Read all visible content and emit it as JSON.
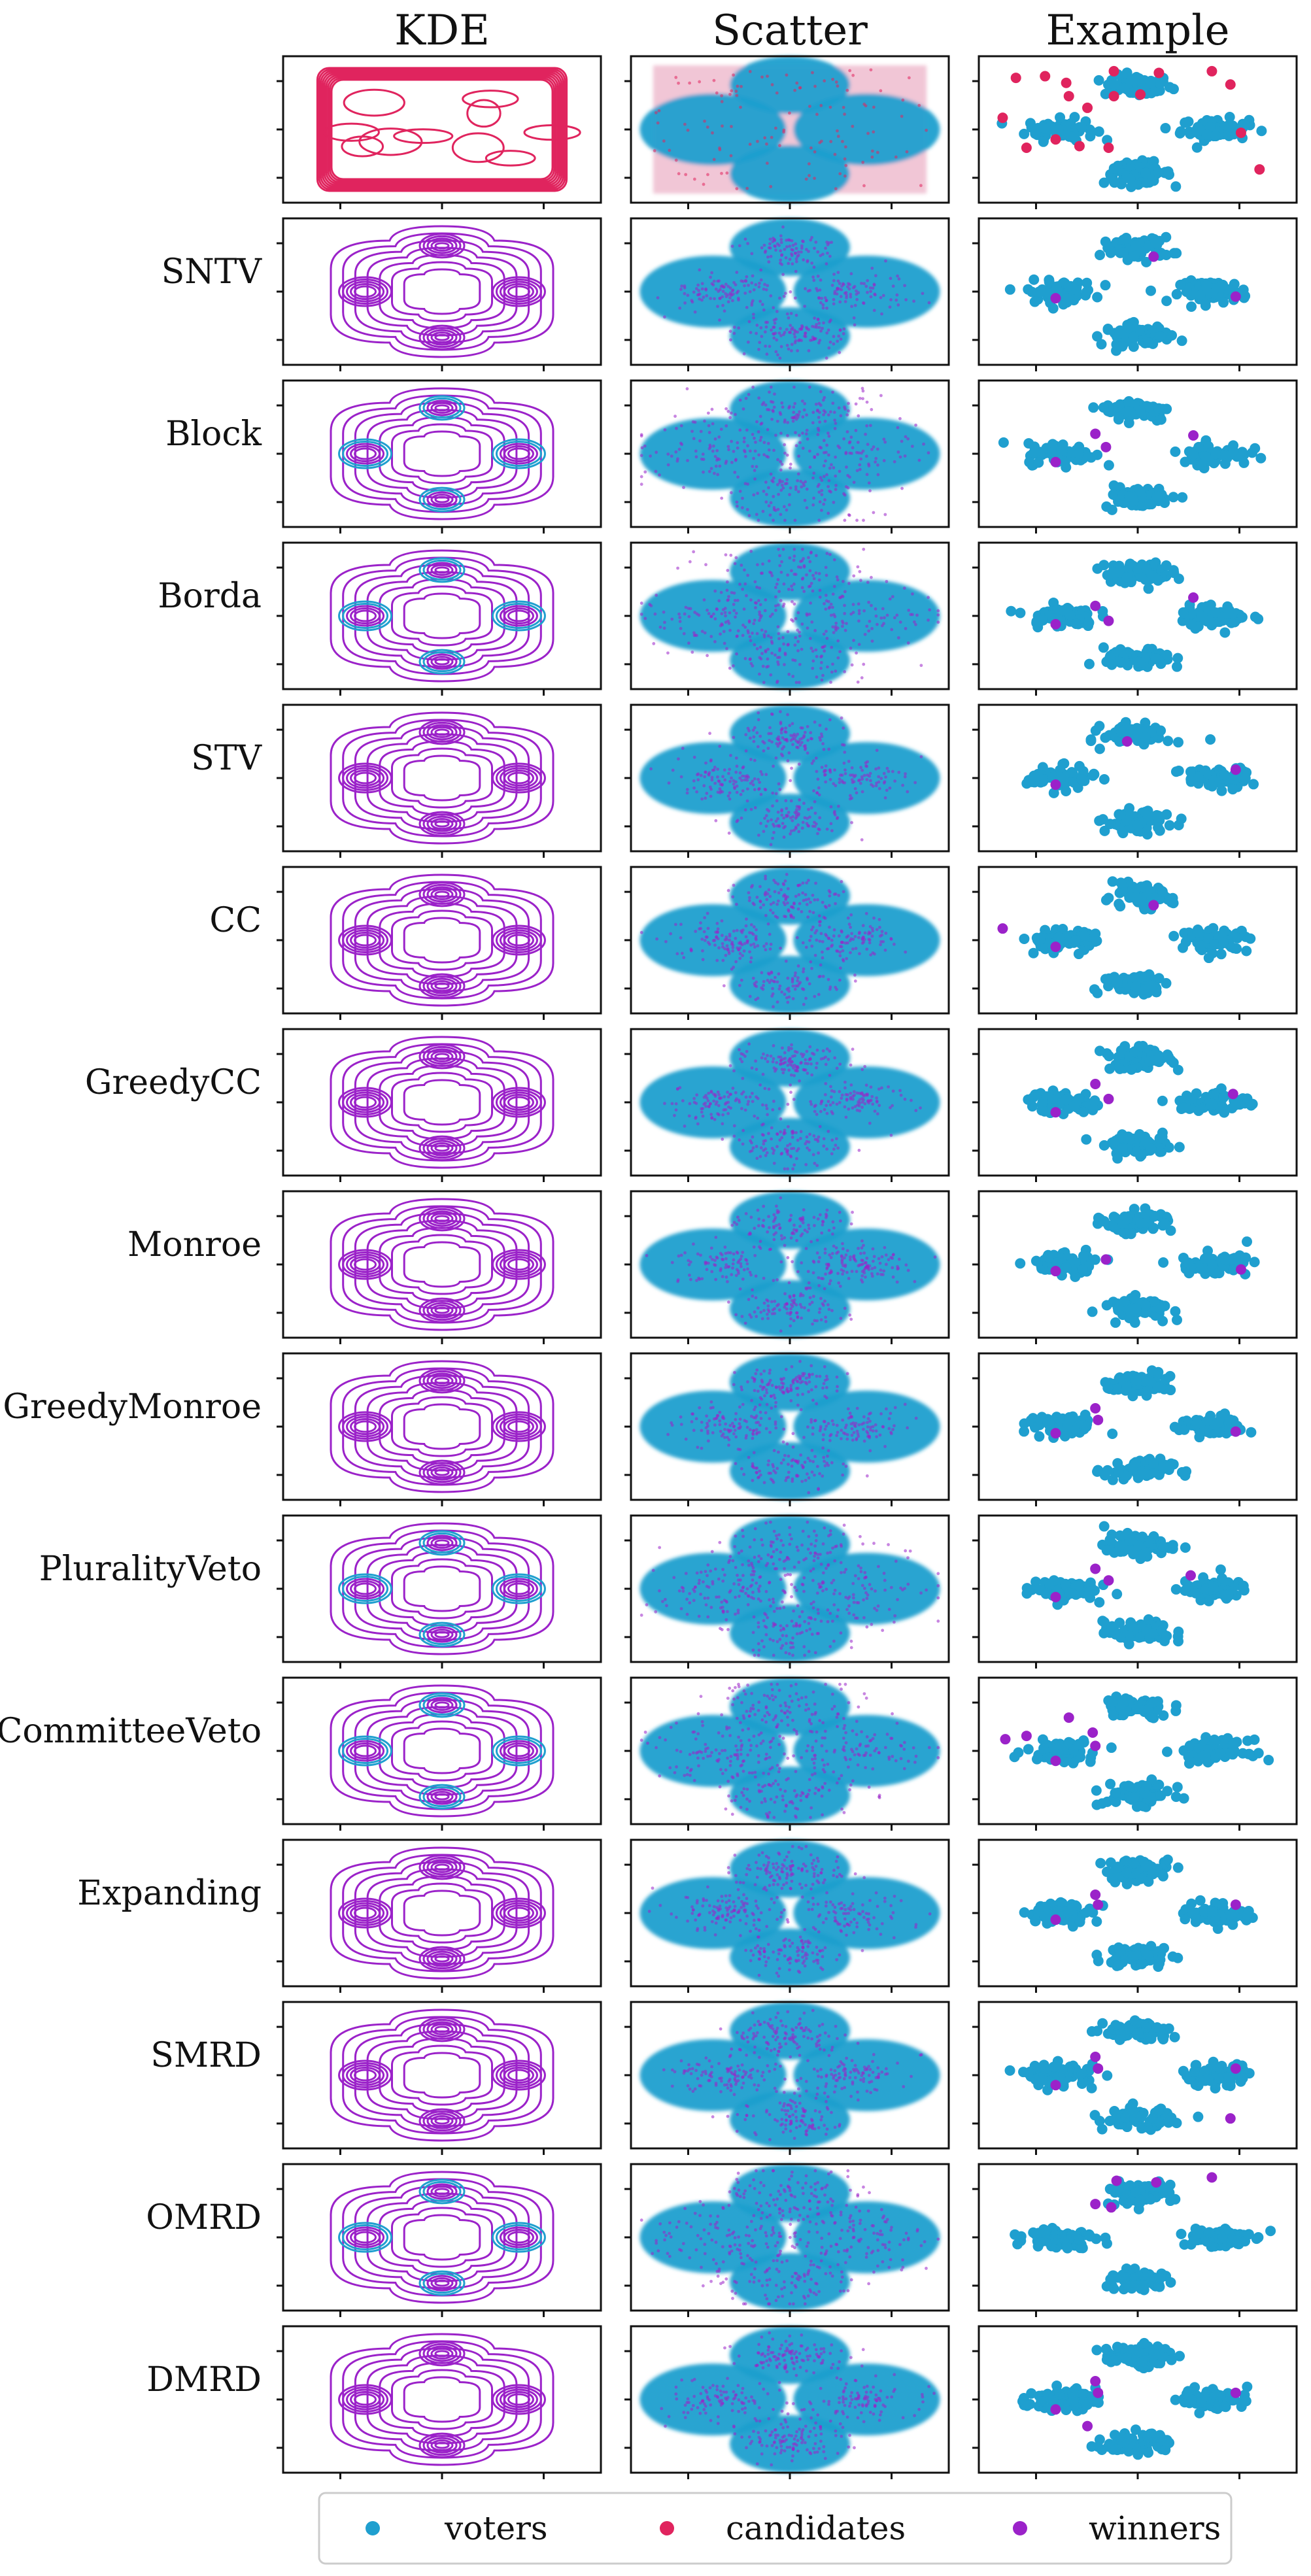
{
  "colors": {
    "voters": "#1f9fcf",
    "candidates": "#e0245e",
    "winners": "#9b22c9"
  },
  "chart_data": {
    "type": "scatter",
    "title": "",
    "column_titles": [
      "KDE",
      "Scatter",
      "Example"
    ],
    "row_labels": [
      "",
      "SNTV",
      "Block",
      "Borda",
      "STV",
      "CC",
      "GreedyCC",
      "Monroe",
      "GreedyMonroe",
      "PluralityVeto",
      "CommitteeVeto",
      "Expanding",
      "SMRD",
      "OMRD",
      "DMRD"
    ],
    "legend": {
      "placement": "bottom-center",
      "entries": [
        {
          "label": "voters",
          "color": "#1f9fcf"
        },
        {
          "label": "candidates",
          "color": "#e0245e"
        },
        {
          "label": "winners",
          "color": "#9b22c9"
        }
      ]
    },
    "voter_clusters": [
      {
        "x": 0,
        "y": 1.45
      },
      {
        "x": -1.45,
        "y": 0
      },
      {
        "x": 1.45,
        "y": 0
      },
      {
        "x": 0,
        "y": -1.45
      }
    ],
    "example_candidates": [
      {
        "x": -2.3,
        "y": 1.55
      },
      {
        "x": -1.75,
        "y": 1.6
      },
      {
        "x": -1.35,
        "y": 1.4
      },
      {
        "x": -0.45,
        "y": 1.75
      },
      {
        "x": 0.4,
        "y": 1.7
      },
      {
        "x": 1.4,
        "y": 1.75
      },
      {
        "x": 1.75,
        "y": 1.35
      },
      {
        "x": -2.55,
        "y": 0.35
      },
      {
        "x": -1.55,
        "y": -0.3
      },
      {
        "x": -0.55,
        "y": -0.55
      },
      {
        "x": -1.1,
        "y": -0.5
      },
      {
        "x": -2.1,
        "y": -0.55
      },
      {
        "x": 1.95,
        "y": -0.1
      },
      {
        "x": 2.3,
        "y": -1.2
      },
      {
        "x": -0.95,
        "y": 0.65
      },
      {
        "x": -1.3,
        "y": 1.0
      },
      {
        "x": -0.45,
        "y": 1.0
      },
      {
        "x": 0.05,
        "y": 1.05
      }
    ],
    "example_winners": [
      [],
      [
        {
          "x": 0.3,
          "y": 1.05
        },
        {
          "x": -1.55,
          "y": -0.2
        },
        {
          "x": 1.85,
          "y": -0.15
        }
      ],
      [
        {
          "x": -0.8,
          "y": 0.6
        },
        {
          "x": -0.6,
          "y": 0.2
        },
        {
          "x": 1.05,
          "y": 0.55
        },
        {
          "x": -1.55,
          "y": -0.25
        }
      ],
      [
        {
          "x": -0.8,
          "y": 0.3
        },
        {
          "x": -0.55,
          "y": -0.15
        },
        {
          "x": 1.05,
          "y": 0.55
        },
        {
          "x": -1.55,
          "y": -0.25
        }
      ],
      [
        {
          "x": -0.2,
          "y": 1.1
        },
        {
          "x": 1.85,
          "y": 0.25
        },
        {
          "x": -1.55,
          "y": -0.2
        }
      ],
      [
        {
          "x": -2.55,
          "y": 0.35
        },
        {
          "x": 0.3,
          "y": 1.05
        },
        {
          "x": -1.55,
          "y": -0.2
        }
      ],
      [
        {
          "x": -0.8,
          "y": 0.55
        },
        {
          "x": -0.55,
          "y": 0.1
        },
        {
          "x": 1.8,
          "y": 0.25
        },
        {
          "x": -1.55,
          "y": -0.3
        }
      ],
      [
        {
          "x": -0.6,
          "y": 0.15
        },
        {
          "x": 1.95,
          "y": -0.15
        },
        {
          "x": -1.55,
          "y": -0.2
        }
      ],
      [
        {
          "x": -0.8,
          "y": 0.55
        },
        {
          "x": -0.75,
          "y": 0.2
        },
        {
          "x": 1.85,
          "y": -0.15
        },
        {
          "x": -1.55,
          "y": -0.2
        }
      ],
      [
        {
          "x": -0.8,
          "y": 0.6
        },
        {
          "x": -0.55,
          "y": 0.25
        },
        {
          "x": 1.0,
          "y": 0.4
        },
        {
          "x": -1.55,
          "y": -0.25
        }
      ],
      [
        {
          "x": -2.5,
          "y": 0.35
        },
        {
          "x": -2.1,
          "y": 0.45
        },
        {
          "x": -0.85,
          "y": 0.55
        },
        {
          "x": -0.8,
          "y": 0.15
        },
        {
          "x": -1.3,
          "y": 1.0
        },
        {
          "x": -1.55,
          "y": -0.3
        }
      ],
      [
        {
          "x": -0.8,
          "y": 0.55
        },
        {
          "x": -0.75,
          "y": 0.25
        },
        {
          "x": 1.85,
          "y": 0.25
        },
        {
          "x": -1.55,
          "y": -0.2
        }
      ],
      [
        {
          "x": -0.8,
          "y": 0.55
        },
        {
          "x": -0.75,
          "y": 0.2
        },
        {
          "x": 1.85,
          "y": 0.2
        },
        {
          "x": -1.55,
          "y": -0.3
        },
        {
          "x": 1.75,
          "y": -1.3
        }
      ],
      [
        {
          "x": -0.4,
          "y": 1.7
        },
        {
          "x": 0.35,
          "y": 1.65
        },
        {
          "x": 1.4,
          "y": 1.8
        },
        {
          "x": -0.8,
          "y": 1.0
        },
        {
          "x": -0.5,
          "y": 0.9
        }
      ],
      [
        {
          "x": -0.8,
          "y": 0.55
        },
        {
          "x": -0.75,
          "y": 0.2
        },
        {
          "x": 1.85,
          "y": 0.2
        },
        {
          "x": -1.55,
          "y": -0.3
        },
        {
          "x": -0.95,
          "y": -0.8
        }
      ]
    ]
  }
}
